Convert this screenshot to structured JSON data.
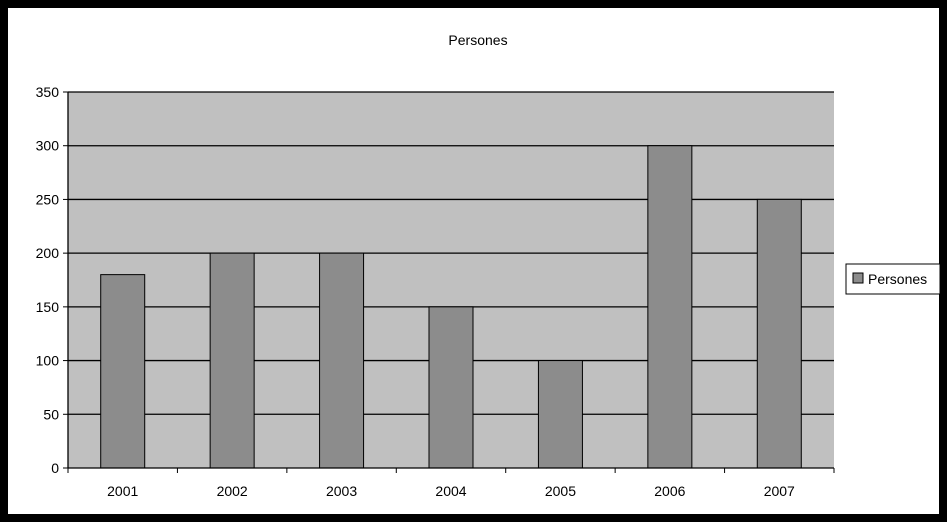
{
  "chart_data": {
    "type": "bar",
    "title": "Persones",
    "categories": [
      "2001",
      "2002",
      "2003",
      "2004",
      "2005",
      "2006",
      "2007"
    ],
    "series": [
      {
        "name": "Persones",
        "values": [
          180,
          200,
          200,
          150,
          100,
          300,
          250
        ]
      }
    ],
    "xlabel": "",
    "ylabel": "",
    "ylim": [
      0,
      350
    ],
    "yticks": [
      "0",
      "50",
      "100",
      "150",
      "200",
      "250",
      "300",
      "350"
    ],
    "grid": true,
    "legend_position": "right",
    "colors": {
      "bar": "#8c8c8c",
      "plot_background": "#c0c0c0",
      "gridline": "#000000",
      "frame": "#000000"
    }
  }
}
